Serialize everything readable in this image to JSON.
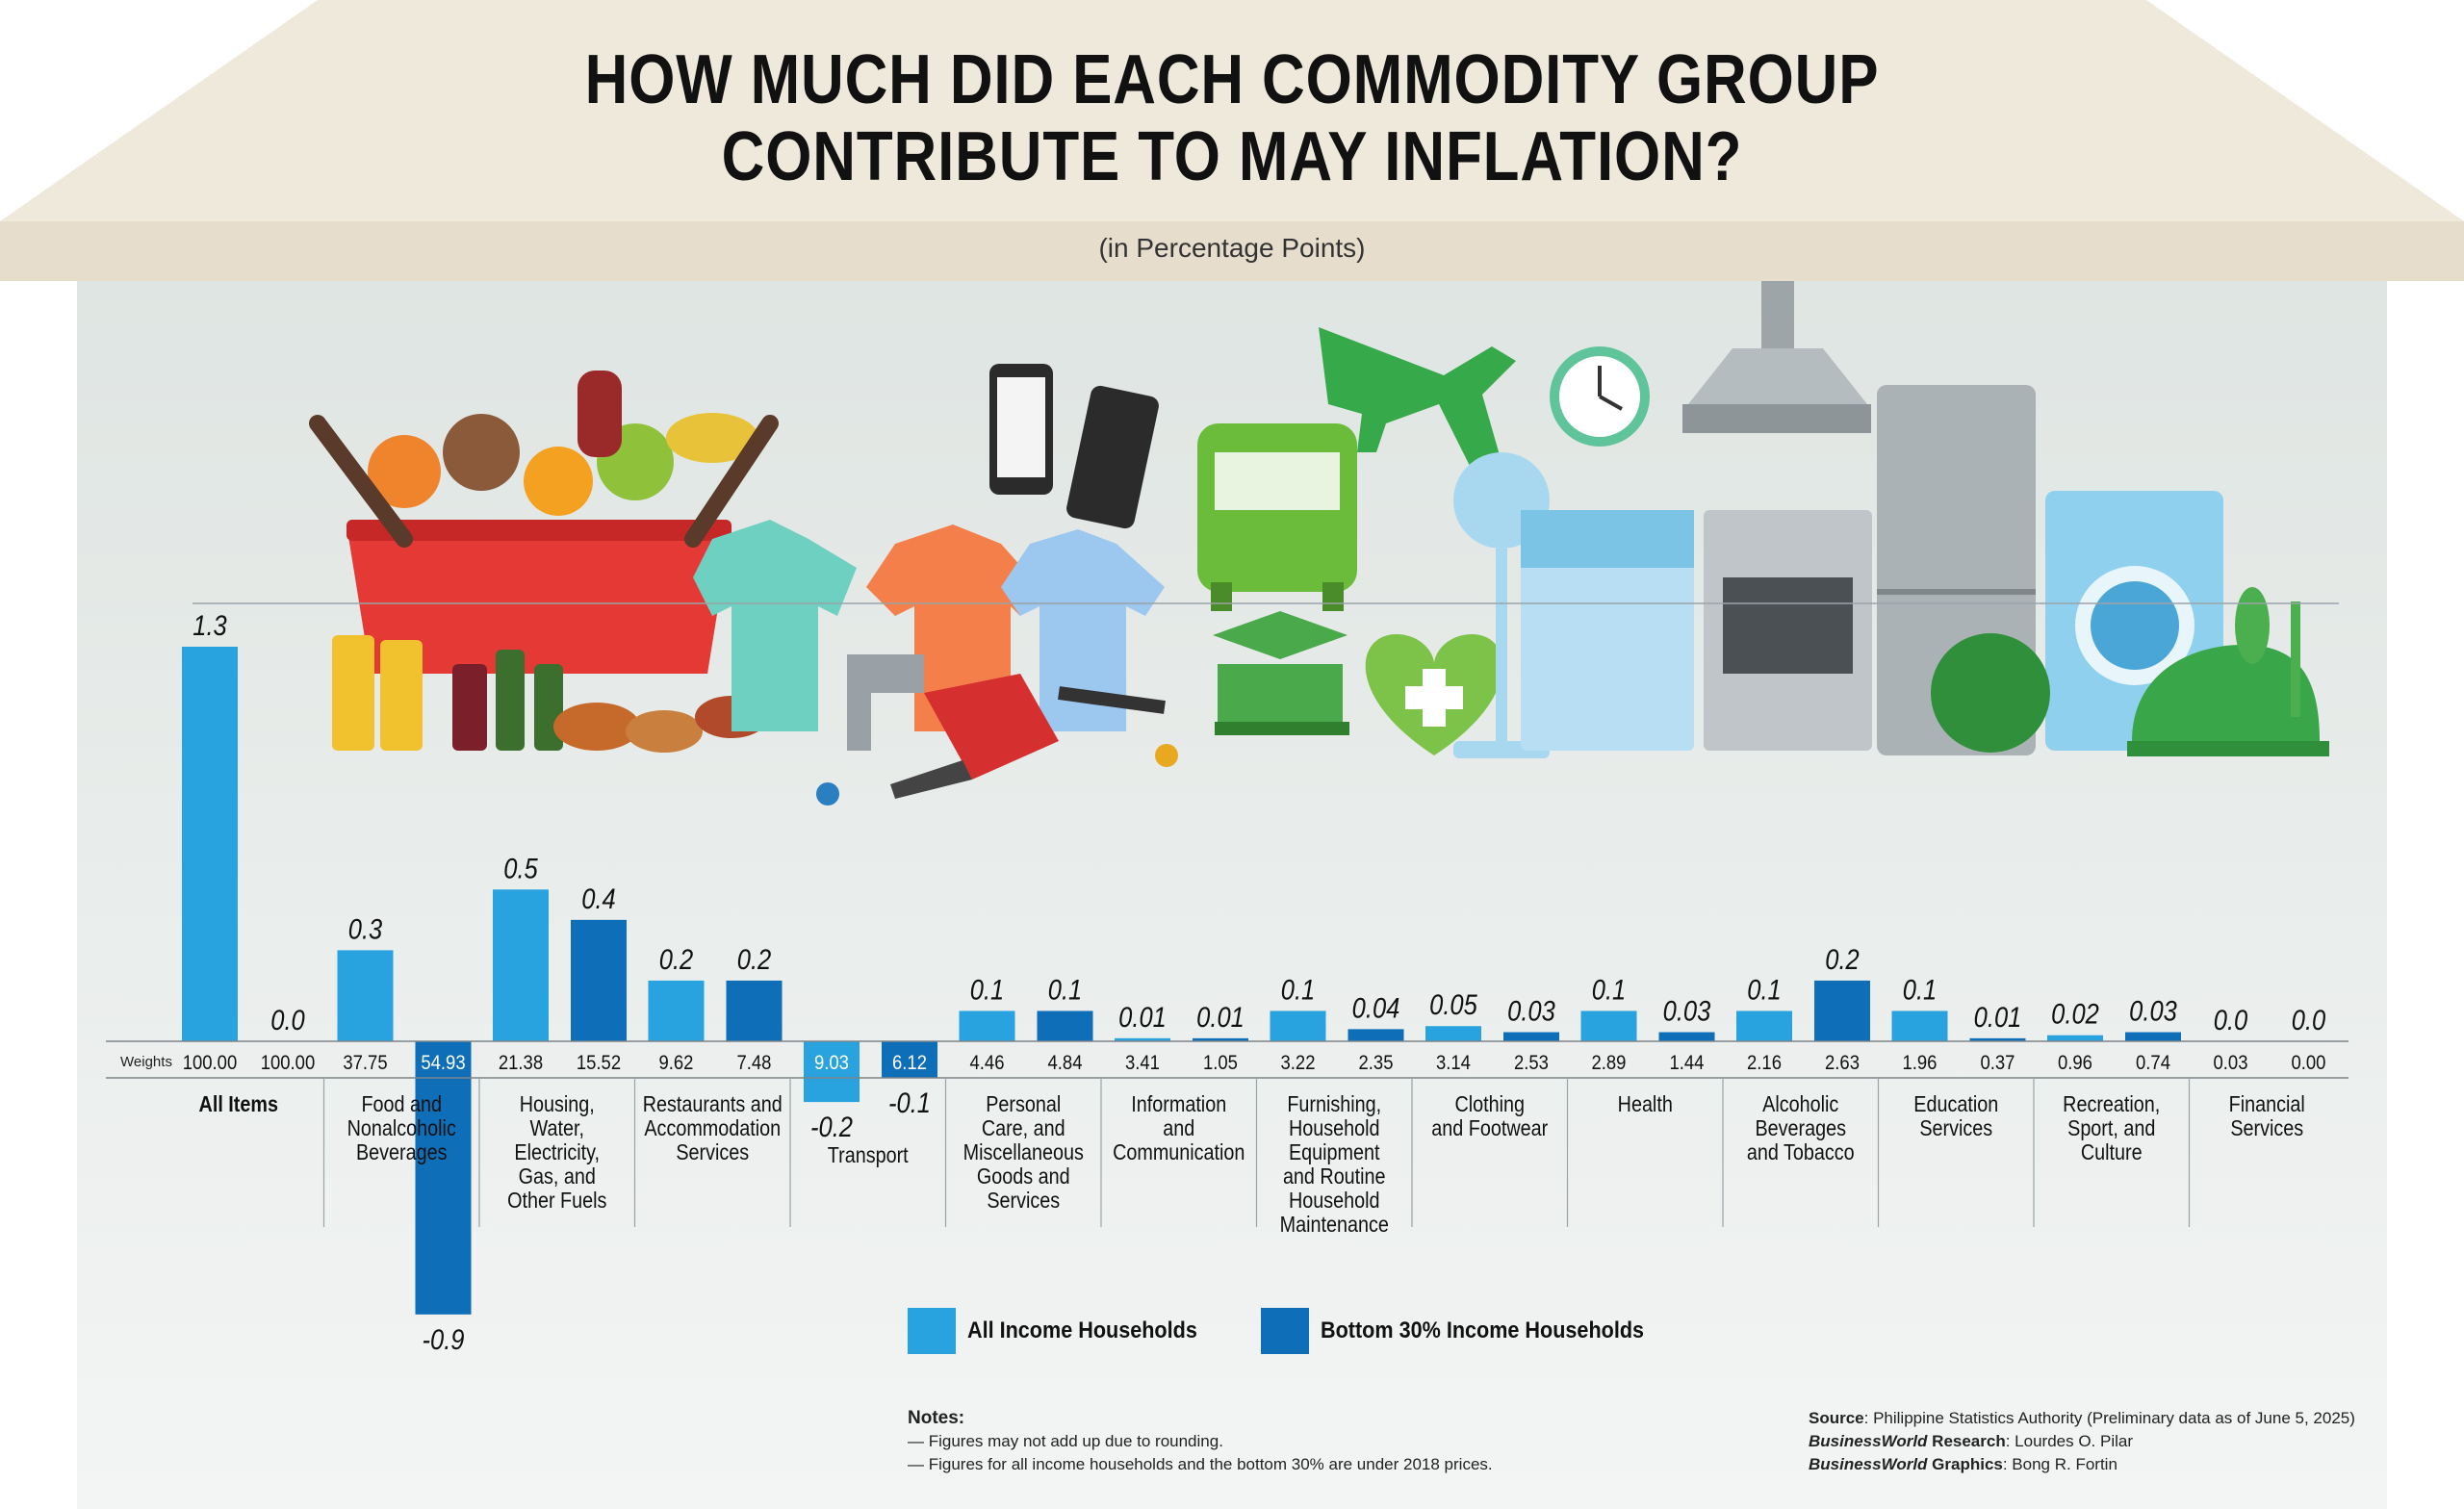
{
  "title_line1": "HOW MUCH DID EACH COMMODITY GROUP",
  "title_line2": "CONTRIBUTE TO MAY INFLATION?",
  "subtitle": "(in Percentage Points)",
  "weights_label": "Weights",
  "colors": {
    "all_income": "#29a3e0",
    "bottom30": "#0e6eb8",
    "roof": "#efe8da",
    "roof_band": "#e5dccb",
    "wall": "#e3e8e5"
  },
  "legend": [
    {
      "label": "All Income Households",
      "color": "#29a3e0"
    },
    {
      "label": "Bottom 30% Income Households",
      "color": "#0e6eb8"
    }
  ],
  "chart_data": {
    "type": "bar",
    "title": "HOW MUCH DID EACH COMMODITY GROUP CONTRIBUTE TO MAY INFLATION?",
    "subtitle": "(in Percentage Points)",
    "categories": [
      [
        "All Items"
      ],
      [
        "Food and",
        "Nonalcoholic",
        "Beverages"
      ],
      [
        "Housing,",
        "Water,",
        "Electricity,",
        "Gas, and",
        "Other Fuels"
      ],
      [
        "Restaurants and",
        "Accommodation",
        "Services"
      ],
      [
        "Transport"
      ],
      [
        "Personal",
        "Care, and",
        "Miscellaneous",
        "Goods and",
        "Services"
      ],
      [
        "Information",
        "and",
        "Communication"
      ],
      [
        "Furnishing,",
        "Household",
        "Equipment",
        "and Routine",
        "Household",
        "Maintenance"
      ],
      [
        "Clothing",
        "and Footwear"
      ],
      [
        "Health"
      ],
      [
        "Alcoholic",
        "Beverages",
        "and Tobacco"
      ],
      [
        "Education",
        "Services"
      ],
      [
        "Recreation,",
        "Sport, and",
        "Culture"
      ],
      [
        "Financial",
        "Services"
      ]
    ],
    "series": [
      {
        "name": "All Income Households",
        "values": [
          1.3,
          0.3,
          0.5,
          0.2,
          -0.2,
          0.1,
          0.01,
          0.1,
          0.05,
          0.1,
          0.1,
          0.1,
          0.02,
          0.0
        ],
        "labels": [
          "1.3",
          "0.3",
          "0.5",
          "0.2",
          "-0.2",
          "0.1",
          "0.01",
          "0.1",
          "0.05",
          "0.1",
          "0.1",
          "0.1",
          "0.02",
          "0.0"
        ],
        "weights": [
          "100.00",
          "37.75",
          "21.38",
          "9.62",
          "9.03",
          "4.46",
          "3.41",
          "3.22",
          "3.14",
          "2.89",
          "2.16",
          "1.96",
          "0.96",
          "0.03"
        ]
      },
      {
        "name": "Bottom 30% Income Households",
        "values": [
          0.0,
          -0.9,
          0.4,
          0.2,
          -0.1,
          0.1,
          0.01,
          0.04,
          0.03,
          0.03,
          0.2,
          0.01,
          0.03,
          0.0
        ],
        "labels": [
          "0.0",
          "-0.9",
          "0.4",
          "0.2",
          "-0.1",
          "0.1",
          "0.01",
          "0.04",
          "0.03",
          "0.03",
          "0.2",
          "0.01",
          "0.03",
          "0.0"
        ],
        "weights": [
          "100.00",
          "54.93",
          "15.52",
          "7.48",
          "6.12",
          "4.84",
          "1.05",
          "2.35",
          "2.53",
          "1.44",
          "2.63",
          "0.37",
          "0.74",
          "0.00"
        ]
      }
    ]
  },
  "notes": {
    "title": "Notes:",
    "lines": [
      "— Figures may not add up due to rounding.",
      "— Figures for all income households and the bottom 30% are under 2018 prices."
    ]
  },
  "source": {
    "source_label": "Source",
    "source_text": ": Philippine Statistics Authority (Preliminary data as of June 5, 2025)",
    "research_brand": "BusinessWorld",
    "research_label": " Research",
    "research_text": ": Lourdes O. Pilar",
    "graphics_brand": "BusinessWorld",
    "graphics_label": " Graphics",
    "graphics_text": ": Bong R. Fortin"
  }
}
